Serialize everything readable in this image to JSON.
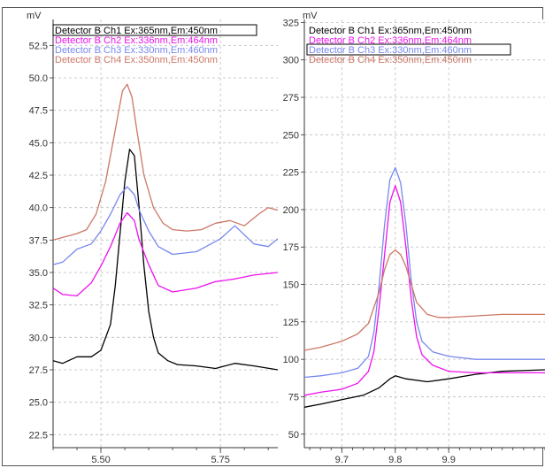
{
  "chart_data": [
    {
      "type": "line",
      "ylabel": "mV",
      "xlim": [
        5.4,
        5.87
      ],
      "ylim": [
        21.5,
        54.5
      ],
      "xticks": [
        5.5,
        5.75
      ],
      "xtick_labels": [
        "5.50",
        "5.75"
      ],
      "yticks": [
        22.5,
        25.0,
        27.5,
        30.0,
        32.5,
        35.0,
        37.5,
        40.0,
        42.5,
        45.0,
        47.5,
        50.0,
        52.5
      ],
      "ytick_labels": [
        "22.5",
        "25.0",
        "27.5",
        "30.0",
        "32.5",
        "35.0",
        "37.5",
        "40.0",
        "42.5",
        "45.0",
        "47.5",
        "50.0",
        "52.5"
      ],
      "grid": true,
      "legend_position": "top-left",
      "highlighted_legend": 0,
      "series": [
        {
          "name": "Detector B Ch1 Ex:365nm,Em:450nm",
          "color": "#000000",
          "x": [
            5.4,
            5.42,
            5.45,
            5.48,
            5.5,
            5.52,
            5.53,
            5.54,
            5.55,
            5.56,
            5.57,
            5.58,
            5.59,
            5.6,
            5.61,
            5.62,
            5.64,
            5.66,
            5.7,
            5.74,
            5.78,
            5.82,
            5.87
          ],
          "y": [
            28.2,
            28.0,
            28.5,
            28.5,
            29.0,
            31.0,
            34.0,
            38.0,
            42.0,
            44.5,
            44.0,
            40.0,
            35.5,
            32.0,
            30.0,
            28.8,
            28.2,
            27.9,
            27.8,
            27.6,
            28.0,
            27.8,
            27.5
          ]
        },
        {
          "name": "Detector B Ch2 Ex:336nm,Em:464nm",
          "color": "#ee11ee",
          "x": [
            5.4,
            5.42,
            5.45,
            5.48,
            5.5,
            5.52,
            5.54,
            5.555,
            5.57,
            5.58,
            5.6,
            5.62,
            5.65,
            5.7,
            5.74,
            5.78,
            5.82,
            5.87
          ],
          "y": [
            33.8,
            33.3,
            33.2,
            34.2,
            35.5,
            37.0,
            38.8,
            39.6,
            39.0,
            37.5,
            35.6,
            34.0,
            33.5,
            33.8,
            34.3,
            34.5,
            34.8,
            35.0
          ]
        },
        {
          "name": "Detector B Ch3 Ex:330nm,Em:460nm",
          "color": "#7788ee",
          "x": [
            5.4,
            5.42,
            5.45,
            5.48,
            5.5,
            5.52,
            5.54,
            5.555,
            5.57,
            5.58,
            5.6,
            5.62,
            5.65,
            5.7,
            5.72,
            5.75,
            5.78,
            5.82,
            5.85,
            5.87
          ],
          "y": [
            35.6,
            35.8,
            36.8,
            37.2,
            38.2,
            39.5,
            41.0,
            41.6,
            41.0,
            39.8,
            38.2,
            37.0,
            36.4,
            36.6,
            37.0,
            37.6,
            38.6,
            37.2,
            37.0,
            37.6
          ]
        },
        {
          "name": "Detector B Ch4 Ex:350nm,Em:450nm",
          "color": "#cc7766",
          "x": [
            5.4,
            5.42,
            5.45,
            5.47,
            5.49,
            5.51,
            5.53,
            5.545,
            5.555,
            5.565,
            5.575,
            5.59,
            5.61,
            5.63,
            5.65,
            5.68,
            5.71,
            5.74,
            5.77,
            5.8,
            5.83,
            5.85,
            5.87
          ],
          "y": [
            37.5,
            37.7,
            38.0,
            38.3,
            39.5,
            42.0,
            46.0,
            49.0,
            49.5,
            48.5,
            46.0,
            42.5,
            40.0,
            38.8,
            38.3,
            38.2,
            38.3,
            38.8,
            39.0,
            38.6,
            39.5,
            40.0,
            39.8
          ]
        }
      ]
    },
    {
      "type": "line",
      "ylabel": "mV",
      "xlim": [
        9.63,
        10.08
      ],
      "ylim": [
        41,
        327
      ],
      "xticks": [
        9.7,
        9.8,
        9.9
      ],
      "xtick_labels": [
        "9.7",
        "9.8",
        "9.9"
      ],
      "yticks": [
        50,
        75,
        100,
        125,
        150,
        175,
        200,
        225,
        250,
        275,
        300,
        325
      ],
      "ytick_labels": [
        "50",
        "75",
        "100",
        "125",
        "150",
        "175",
        "200",
        "225",
        "250",
        "275",
        "300",
        "325"
      ],
      "grid": true,
      "legend_position": "top-left",
      "highlighted_legend": 2,
      "series": [
        {
          "name": "Detector B Ch1 Ex:365nm,Em:450nm",
          "color": "#000000",
          "x": [
            9.63,
            9.66,
            9.7,
            9.74,
            9.77,
            9.79,
            9.8,
            9.82,
            9.86,
            9.9,
            9.95,
            10.0,
            10.08
          ],
          "y": [
            68,
            70,
            73,
            76,
            81,
            87,
            89,
            87,
            85,
            87,
            90,
            92,
            93
          ]
        },
        {
          "name": "Detector B Ch2 Ex:336nm,Em:464nm",
          "color": "#ee11ee",
          "x": [
            9.63,
            9.66,
            9.7,
            9.73,
            9.75,
            9.76,
            9.77,
            9.78,
            9.79,
            9.8,
            9.81,
            9.82,
            9.83,
            9.84,
            9.85,
            9.87,
            9.9,
            9.95,
            10.0,
            10.08
          ],
          "y": [
            76,
            78,
            80,
            84,
            92,
            105,
            135,
            170,
            205,
            216,
            205,
            175,
            140,
            115,
            103,
            96,
            92,
            91,
            91,
            91
          ]
        },
        {
          "name": "Detector B Ch3 Ex:330nm,Em:460nm",
          "color": "#7788ee",
          "x": [
            9.63,
            9.66,
            9.7,
            9.73,
            9.75,
            9.76,
            9.77,
            9.78,
            9.79,
            9.8,
            9.81,
            9.82,
            9.83,
            9.84,
            9.85,
            9.87,
            9.9,
            9.95,
            10.0,
            10.08
          ],
          "y": [
            88,
            89,
            91,
            94,
            102,
            118,
            150,
            190,
            220,
            228,
            218,
            190,
            152,
            125,
            112,
            105,
            102,
            100,
            100,
            100
          ]
        },
        {
          "name": "Detector B Ch4 Ex:350nm,Em:450nm",
          "color": "#cc7766",
          "x": [
            9.63,
            9.66,
            9.7,
            9.73,
            9.75,
            9.77,
            9.78,
            9.79,
            9.8,
            9.81,
            9.82,
            9.83,
            9.84,
            9.86,
            9.88,
            9.9,
            9.95,
            10.0,
            10.08
          ],
          "y": [
            106,
            108,
            112,
            117,
            124,
            145,
            160,
            170,
            173,
            170,
            162,
            150,
            138,
            130,
            128,
            128,
            129,
            130,
            130
          ]
        }
      ]
    }
  ]
}
